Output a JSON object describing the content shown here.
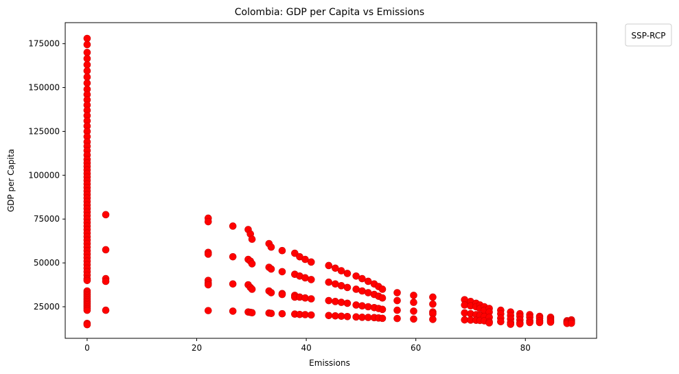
{
  "chart_data": {
    "type": "scatter",
    "title": "Colombia: GDP per Capita vs Emissions",
    "xlabel": "Emissions",
    "ylabel": "GDP per Capita",
    "xlim": [
      -4,
      93
    ],
    "ylim": [
      7000,
      187000
    ],
    "xticks": [
      0,
      20,
      40,
      60,
      80
    ],
    "yticks": [
      25000,
      50000,
      75000,
      100000,
      125000,
      150000,
      175000
    ],
    "grid": false,
    "legend": {
      "title": "SSP-RCP",
      "placement": "upper-right-outside",
      "entries": []
    },
    "point_color": "#ff0000",
    "point_edge_color": "#cc0000",
    "series": [
      {
        "points": [
          [
            0,
            178000
          ],
          [
            0,
            174500
          ],
          [
            0,
            170000
          ],
          [
            0,
            166500
          ],
          [
            0,
            163000
          ],
          [
            0,
            159500
          ],
          [
            0,
            156000
          ],
          [
            0,
            152500
          ],
          [
            0,
            149000
          ],
          [
            0,
            146000
          ],
          [
            0,
            143000
          ],
          [
            0,
            140000
          ],
          [
            0,
            137000
          ],
          [
            0,
            134000
          ],
          [
            0,
            131000
          ],
          [
            0,
            128000
          ],
          [
            0,
            125000
          ],
          [
            0,
            122000
          ],
          [
            0,
            119000
          ],
          [
            0,
            116500
          ],
          [
            0,
            114000
          ],
          [
            0,
            111500
          ],
          [
            0,
            109000
          ],
          [
            0,
            107000
          ],
          [
            0,
            105000
          ],
          [
            0,
            103000
          ],
          [
            0,
            101000
          ],
          [
            0,
            99000
          ],
          [
            0,
            97000
          ],
          [
            0,
            95000
          ],
          [
            0,
            93000
          ],
          [
            0,
            91000
          ],
          [
            0,
            89000
          ],
          [
            0,
            87000
          ],
          [
            0,
            85000
          ],
          [
            0,
            83000
          ],
          [
            0,
            81000
          ],
          [
            0,
            79000
          ],
          [
            0,
            77000
          ],
          [
            0,
            75000
          ],
          [
            0,
            73000
          ],
          [
            0,
            71000
          ],
          [
            0,
            69000
          ],
          [
            0,
            67000
          ],
          [
            0,
            65000
          ],
          [
            0,
            63000
          ],
          [
            0,
            61000
          ],
          [
            0,
            59000
          ],
          [
            0,
            57000
          ],
          [
            0,
            55000
          ],
          [
            0,
            53000
          ],
          [
            0,
            51000
          ],
          [
            0,
            49000
          ],
          [
            0,
            47000
          ],
          [
            0,
            45000
          ],
          [
            0,
            43000
          ],
          [
            0,
            41000
          ],
          [
            0,
            40000
          ],
          [
            0,
            34000
          ],
          [
            0,
            33000
          ],
          [
            0,
            32000
          ],
          [
            0,
            31000
          ],
          [
            0,
            30000
          ],
          [
            0,
            29000
          ],
          [
            0,
            28000
          ],
          [
            0,
            27000
          ],
          [
            0,
            26000
          ],
          [
            0,
            25000
          ],
          [
            0,
            24000
          ],
          [
            0,
            23000
          ],
          [
            0,
            15500
          ],
          [
            0,
            14800
          ],
          [
            3.4,
            77500
          ],
          [
            3.4,
            57500
          ],
          [
            3.4,
            41000
          ],
          [
            3.4,
            39500
          ],
          [
            3.4,
            23000
          ],
          [
            22.1,
            75500
          ],
          [
            22.1,
            73500
          ],
          [
            22.1,
            56000
          ],
          [
            22.1,
            55000
          ],
          [
            22.1,
            40000
          ],
          [
            22.1,
            38500
          ],
          [
            22.1,
            37500
          ],
          [
            22.1,
            22800
          ],
          [
            26.6,
            71000
          ],
          [
            26.6,
            53500
          ],
          [
            26.6,
            38000
          ],
          [
            26.6,
            22500
          ],
          [
            29.4,
            69000
          ],
          [
            29.4,
            52000
          ],
          [
            29.4,
            37500
          ],
          [
            29.4,
            22000
          ],
          [
            29.8,
            66500
          ],
          [
            29.8,
            51000
          ],
          [
            29.8,
            36000
          ],
          [
            29.8,
            21800
          ],
          [
            30.1,
            63500
          ],
          [
            30.1,
            49500
          ],
          [
            30.1,
            35000
          ],
          [
            30.1,
            21600
          ],
          [
            33.2,
            61000
          ],
          [
            33.2,
            47500
          ],
          [
            33.2,
            34000
          ],
          [
            33.2,
            21400
          ],
          [
            33.6,
            59000
          ],
          [
            33.6,
            46500
          ],
          [
            33.6,
            33000
          ],
          [
            33.6,
            21200
          ],
          [
            35.6,
            57000
          ],
          [
            35.6,
            45000
          ],
          [
            35.6,
            32500
          ],
          [
            35.6,
            32000
          ],
          [
            35.6,
            21000
          ],
          [
            37.9,
            55500
          ],
          [
            37.9,
            43500
          ],
          [
            37.9,
            31500
          ],
          [
            37.9,
            30500
          ],
          [
            37.9,
            20800
          ],
          [
            38.8,
            53500
          ],
          [
            38.8,
            42500
          ],
          [
            38.8,
            30500
          ],
          [
            38.8,
            20600
          ],
          [
            39.8,
            52000
          ],
          [
            39.8,
            41500
          ],
          [
            39.8,
            30000
          ],
          [
            39.8,
            20500
          ],
          [
            40.9,
            50500
          ],
          [
            40.9,
            40500
          ],
          [
            40.9,
            29500
          ],
          [
            40.9,
            20300
          ],
          [
            44.1,
            48500
          ],
          [
            44.1,
            39000
          ],
          [
            44.1,
            28500
          ],
          [
            44.1,
            20000
          ],
          [
            45.3,
            47000
          ],
          [
            45.3,
            38000
          ],
          [
            45.3,
            28000
          ],
          [
            45.3,
            19800
          ],
          [
            46.4,
            45500
          ],
          [
            46.4,
            37000
          ],
          [
            46.4,
            27500
          ],
          [
            46.4,
            19600
          ],
          [
            47.5,
            44000
          ],
          [
            47.5,
            36000
          ],
          [
            47.5,
            27000
          ],
          [
            47.5,
            19400
          ],
          [
            49.1,
            42500
          ],
          [
            49.1,
            35000
          ],
          [
            49.1,
            26000
          ],
          [
            49.1,
            19200
          ],
          [
            50.2,
            41000
          ],
          [
            50.2,
            34000
          ],
          [
            50.2,
            25500
          ],
          [
            50.2,
            19000
          ],
          [
            51.3,
            39500
          ],
          [
            51.3,
            33000
          ],
          [
            51.3,
            25000
          ],
          [
            51.3,
            18900
          ],
          [
            52.4,
            38000
          ],
          [
            52.4,
            32000
          ],
          [
            52.4,
            24500
          ],
          [
            52.4,
            18800
          ],
          [
            53.2,
            36500
          ],
          [
            53.2,
            31000
          ],
          [
            53.2,
            24000
          ],
          [
            53.2,
            18600
          ],
          [
            53.9,
            35000
          ],
          [
            53.9,
            30000
          ],
          [
            53.9,
            23500
          ],
          [
            53.9,
            18400
          ],
          [
            56.6,
            33000
          ],
          [
            56.6,
            28500
          ],
          [
            56.6,
            23000
          ],
          [
            56.6,
            18300
          ],
          [
            59.6,
            31500
          ],
          [
            59.6,
            27500
          ],
          [
            59.6,
            22500
          ],
          [
            59.6,
            18000
          ],
          [
            63.1,
            30500
          ],
          [
            63.1,
            26500
          ],
          [
            63.1,
            22000
          ],
          [
            63.1,
            21000
          ],
          [
            63.1,
            17800
          ],
          [
            68.9,
            29000
          ],
          [
            68.9,
            26000
          ],
          [
            68.9,
            21500
          ],
          [
            68.9,
            17500
          ],
          [
            70.0,
            28000
          ],
          [
            70.0,
            25500
          ],
          [
            70.0,
            21000
          ],
          [
            70.0,
            17400
          ],
          [
            71.0,
            27000
          ],
          [
            71.0,
            25000
          ],
          [
            71.0,
            20500
          ],
          [
            71.0,
            17300
          ],
          [
            71.7,
            26000
          ],
          [
            71.7,
            24000
          ],
          [
            71.7,
            20000
          ],
          [
            71.7,
            17200
          ],
          [
            72.5,
            25000
          ],
          [
            72.5,
            23000
          ],
          [
            72.5,
            19500
          ],
          [
            72.5,
            17000
          ],
          [
            73.4,
            24000
          ],
          [
            73.4,
            22000
          ],
          [
            73.4,
            19000
          ],
          [
            73.4,
            16500
          ],
          [
            73.4,
            15800
          ],
          [
            75.5,
            23000
          ],
          [
            75.5,
            21000
          ],
          [
            75.5,
            18500
          ],
          [
            75.5,
            16500
          ],
          [
            77.3,
            22000
          ],
          [
            77.3,
            20000
          ],
          [
            77.3,
            18000
          ],
          [
            77.3,
            16000
          ],
          [
            77.3,
            15000
          ],
          [
            79.0,
            21000
          ],
          [
            79.0,
            19500
          ],
          [
            79.0,
            17500
          ],
          [
            79.0,
            15800
          ],
          [
            79.0,
            15200
          ],
          [
            80.8,
            20500
          ],
          [
            80.8,
            19000
          ],
          [
            80.8,
            17000
          ],
          [
            80.8,
            16000
          ],
          [
            82.6,
            19500
          ],
          [
            82.6,
            18500
          ],
          [
            82.6,
            17000
          ],
          [
            82.6,
            16000
          ],
          [
            84.6,
            19000
          ],
          [
            84.6,
            18000
          ],
          [
            84.6,
            17000
          ],
          [
            84.6,
            16200
          ],
          [
            87.6,
            17000
          ],
          [
            87.6,
            16500
          ],
          [
            87.6,
            16000
          ],
          [
            87.6,
            15500
          ],
          [
            88.4,
            17500
          ],
          [
            88.4,
            16800
          ],
          [
            88.4,
            16200
          ],
          [
            88.4,
            15600
          ]
        ]
      }
    ]
  }
}
